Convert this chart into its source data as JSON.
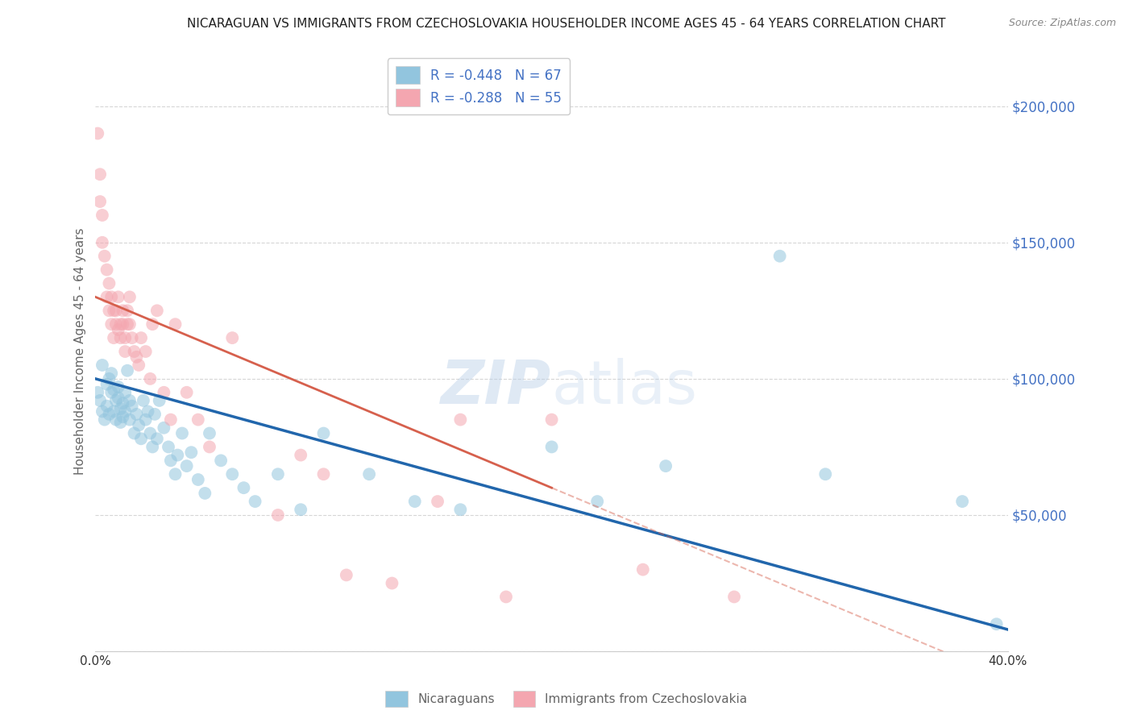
{
  "title": "NICARAGUAN VS IMMIGRANTS FROM CZECHOSLOVAKIA HOUSEHOLDER INCOME AGES 45 - 64 YEARS CORRELATION CHART",
  "source": "Source: ZipAtlas.com",
  "ylabel": "Householder Income Ages 45 - 64 years",
  "xlim": [
    0.0,
    0.4
  ],
  "ylim": [
    0,
    220000
  ],
  "yticks": [
    0,
    50000,
    100000,
    150000,
    200000
  ],
  "ytick_labels": [
    "",
    "$50,000",
    "$100,000",
    "$150,000",
    "$200,000"
  ],
  "xticks": [
    0.0,
    0.05,
    0.1,
    0.15,
    0.2,
    0.25,
    0.3,
    0.35,
    0.4
  ],
  "xtick_labels": [
    "0.0%",
    "",
    "",
    "",
    "",
    "",
    "",
    "",
    "40.0%"
  ],
  "blue_color": "#92c5de",
  "pink_color": "#f4a6b0",
  "blue_line_color": "#2166ac",
  "pink_line_color": "#d6604d",
  "blue_r": -0.448,
  "blue_n": 67,
  "pink_r": -0.288,
  "pink_n": 55,
  "blue_intercept": 100000,
  "blue_slope": -230000,
  "pink_intercept": 130000,
  "pink_slope": -350000,
  "blue_scatter_x": [
    0.001,
    0.002,
    0.003,
    0.003,
    0.004,
    0.005,
    0.005,
    0.006,
    0.006,
    0.007,
    0.007,
    0.008,
    0.008,
    0.009,
    0.009,
    0.01,
    0.01,
    0.011,
    0.011,
    0.012,
    0.012,
    0.013,
    0.013,
    0.014,
    0.015,
    0.015,
    0.016,
    0.017,
    0.018,
    0.019,
    0.02,
    0.021,
    0.022,
    0.023,
    0.024,
    0.025,
    0.026,
    0.027,
    0.028,
    0.03,
    0.032,
    0.033,
    0.035,
    0.036,
    0.038,
    0.04,
    0.042,
    0.045,
    0.048,
    0.05,
    0.055,
    0.06,
    0.065,
    0.07,
    0.08,
    0.09,
    0.1,
    0.12,
    0.14,
    0.16,
    0.2,
    0.22,
    0.25,
    0.3,
    0.32,
    0.38,
    0.395
  ],
  "blue_scatter_y": [
    95000,
    92000,
    88000,
    105000,
    85000,
    98000,
    90000,
    100000,
    87000,
    95000,
    102000,
    96000,
    88000,
    92000,
    85000,
    97000,
    93000,
    89000,
    84000,
    91000,
    86000,
    95000,
    88000,
    103000,
    92000,
    85000,
    90000,
    80000,
    87000,
    83000,
    78000,
    92000,
    85000,
    88000,
    80000,
    75000,
    87000,
    78000,
    92000,
    82000,
    75000,
    70000,
    65000,
    72000,
    80000,
    68000,
    73000,
    63000,
    58000,
    80000,
    70000,
    65000,
    60000,
    55000,
    65000,
    52000,
    80000,
    65000,
    55000,
    52000,
    75000,
    55000,
    68000,
    145000,
    65000,
    55000,
    10000
  ],
  "pink_scatter_x": [
    0.001,
    0.002,
    0.002,
    0.003,
    0.003,
    0.004,
    0.005,
    0.005,
    0.006,
    0.006,
    0.007,
    0.007,
    0.008,
    0.008,
    0.009,
    0.009,
    0.01,
    0.01,
    0.011,
    0.011,
    0.012,
    0.012,
    0.013,
    0.013,
    0.014,
    0.014,
    0.015,
    0.015,
    0.016,
    0.017,
    0.018,
    0.019,
    0.02,
    0.022,
    0.024,
    0.025,
    0.027,
    0.03,
    0.033,
    0.035,
    0.04,
    0.045,
    0.05,
    0.06,
    0.08,
    0.09,
    0.1,
    0.11,
    0.13,
    0.15,
    0.16,
    0.18,
    0.2,
    0.24,
    0.28
  ],
  "pink_scatter_y": [
    190000,
    175000,
    165000,
    160000,
    150000,
    145000,
    140000,
    130000,
    135000,
    125000,
    130000,
    120000,
    125000,
    115000,
    120000,
    125000,
    118000,
    130000,
    120000,
    115000,
    120000,
    125000,
    115000,
    110000,
    125000,
    120000,
    130000,
    120000,
    115000,
    110000,
    108000,
    105000,
    115000,
    110000,
    100000,
    120000,
    125000,
    95000,
    85000,
    120000,
    95000,
    85000,
    75000,
    115000,
    50000,
    72000,
    65000,
    28000,
    25000,
    55000,
    85000,
    20000,
    85000,
    30000,
    20000
  ]
}
